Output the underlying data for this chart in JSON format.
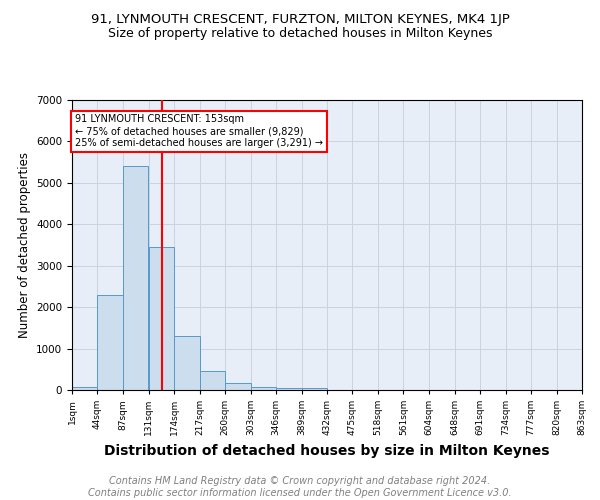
{
  "title1": "91, LYNMOUTH CRESCENT, FURZTON, MILTON KEYNES, MK4 1JP",
  "title2": "Size of property relative to detached houses in Milton Keynes",
  "xlabel": "Distribution of detached houses by size in Milton Keynes",
  "ylabel": "Number of detached properties",
  "bin_edges": [
    1,
    44,
    87,
    131,
    174,
    217,
    260,
    303,
    346,
    389,
    432,
    475,
    518,
    561,
    604,
    648,
    691,
    734,
    777,
    820,
    863
  ],
  "bar_heights": [
    80,
    2300,
    5400,
    3450,
    1300,
    450,
    170,
    80,
    50,
    50,
    0,
    0,
    0,
    0,
    0,
    0,
    0,
    0,
    0,
    0
  ],
  "bar_color": "#ccdded",
  "bar_edge_color": "#5599cc",
  "red_line_x": 153,
  "annotation_text": "91 LYNMOUTH CRESCENT: 153sqm\n← 75% of detached houses are smaller (9,829)\n25% of semi-detached houses are larger (3,291) →",
  "annotation_box_color": "white",
  "annotation_box_edge": "red",
  "ylim": [
    0,
    7000
  ],
  "tick_labels": [
    "1sqm",
    "44sqm",
    "87sqm",
    "131sqm",
    "174sqm",
    "217sqm",
    "260sqm",
    "303sqm",
    "346sqm",
    "389sqm",
    "432sqm",
    "475sqm",
    "518sqm",
    "561sqm",
    "604sqm",
    "648sqm",
    "691sqm",
    "734sqm",
    "777sqm",
    "820sqm",
    "863sqm"
  ],
  "footer": "Contains HM Land Registry data © Crown copyright and database right 2024.\nContains public sector information licensed under the Open Government Licence v3.0.",
  "title1_fontsize": 9.5,
  "title2_fontsize": 9,
  "xlabel_fontsize": 10,
  "ylabel_fontsize": 8.5,
  "footer_fontsize": 7,
  "grid_color": "#c8d4e4",
  "background_color": "#e8eef8"
}
